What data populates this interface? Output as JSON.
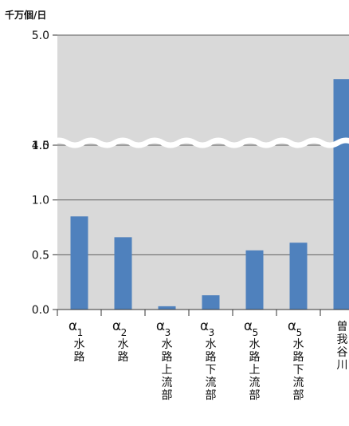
{
  "chart_data": {
    "type": "bar",
    "unit_label": "千万個/日",
    "categories": [
      {
        "greek": "α",
        "sub": "1",
        "label": "水路"
      },
      {
        "greek": "α",
        "sub": "2",
        "label": "水路"
      },
      {
        "greek": "α",
        "sub": "3",
        "label": "水路上流部"
      },
      {
        "greek": "α",
        "sub": "3",
        "label": "水路下流部"
      },
      {
        "greek": "α",
        "sub": "5",
        "label": "水路上流部"
      },
      {
        "greek": "α",
        "sub": "5",
        "label": "水路下流部"
      },
      {
        "greek": "",
        "sub": "",
        "label": "曽我谷川"
      }
    ],
    "values": [
      0.85,
      0.66,
      0.03,
      0.13,
      0.54,
      0.61,
      4.6
    ],
    "y_ticks": [
      "0.0",
      "0.5",
      "1.0",
      "1.5",
      "4.0",
      "5.0"
    ],
    "y_axis_break": {
      "from": 1.5,
      "to": 4.0
    },
    "lower_ylim": [
      0,
      1.5
    ],
    "upper_ylim": [
      4.0,
      5.0
    ],
    "grid": true,
    "colors": {
      "bar": "#4f81bd",
      "plot_background": "#d9d9d9",
      "gridline": "#5f5f5f",
      "break_band": "#ffffff"
    }
  }
}
